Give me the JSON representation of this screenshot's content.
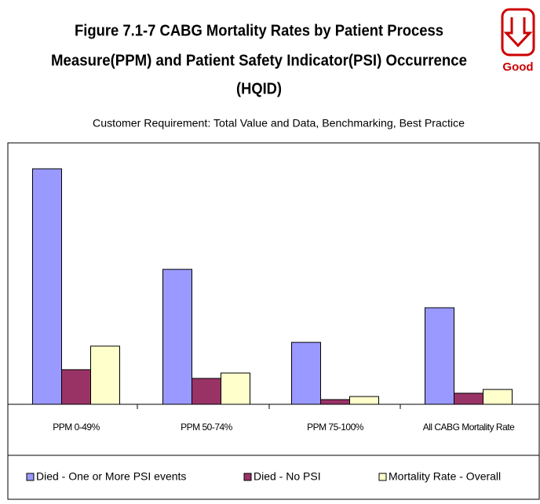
{
  "chart_data": {
    "type": "bar",
    "title": [
      "Figure 7.1-7 CABG Mortality Rates by Patient Process",
      "Measure(PPM) and Patient Safety Indicator(PSI) Occurrence",
      "(HQID)"
    ],
    "subtitle": "Customer Requirement:  Total Value and Data, Benchmarking, Best Practice",
    "badge": "Good",
    "categories": [
      "PPM 0-49%",
      "PPM 50-74%",
      "PPM 75-100%",
      "All CABG Mortality Rate"
    ],
    "series": [
      {
        "name": "Died - One or More PSI events",
        "color": "#9999ff",
        "values": [
          100,
          57.3,
          26.3,
          41
        ]
      },
      {
        "name": "Died - No PSI",
        "color": "#993366",
        "values": [
          14.7,
          11,
          2,
          4.7
        ]
      },
      {
        "name": "Mortality Rate - Overall",
        "color": "#ffffcc",
        "values": [
          24.7,
          13.3,
          3.3,
          6.3
        ]
      }
    ],
    "ylim": [
      0,
      110
    ],
    "grid": false,
    "legend": "bottom"
  }
}
